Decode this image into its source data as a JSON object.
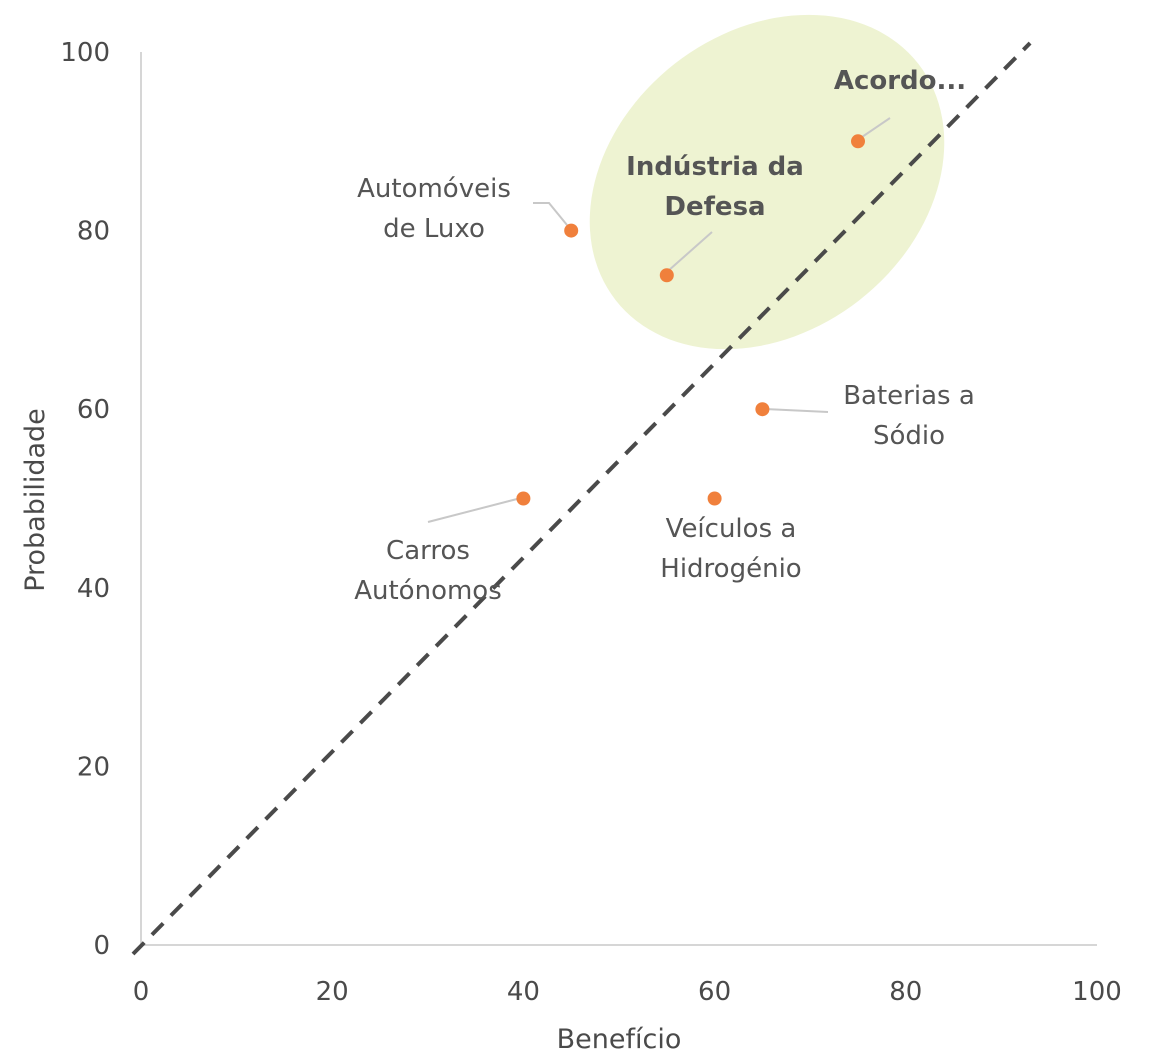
{
  "chart_data": {
    "type": "scatter",
    "title": "",
    "xlabel": "Benefício",
    "ylabel": "Probabilidade",
    "xlim": [
      0,
      100
    ],
    "ylim": [
      0,
      100
    ],
    "x_ticks": [
      "0",
      "20",
      "40",
      "60",
      "80",
      "100"
    ],
    "y_ticks": [
      "0",
      "20",
      "40",
      "60",
      "80",
      "100"
    ],
    "grid": false,
    "reference_line": {
      "style": "dashed",
      "color": "#4a4a4a",
      "from": [
        0,
        0
      ],
      "to": [
        93,
        101
      ]
    },
    "highlight_region": {
      "shape": "ellipse",
      "color": "#eef3d2"
    },
    "point_color": "#f0803c",
    "points": [
      {
        "id": "automoveis",
        "x": 45,
        "y": 80,
        "label": [
          "Automóveis",
          "de Luxo"
        ],
        "bold": false
      },
      {
        "id": "defesa",
        "x": 55,
        "y": 75,
        "label": [
          "Indústria da",
          "Defesa"
        ],
        "bold": true
      },
      {
        "id": "acordo",
        "x": 75,
        "y": 90,
        "label": [
          "Acordo..."
        ],
        "bold": true
      },
      {
        "id": "baterias",
        "x": 65,
        "y": 60,
        "label": [
          "Baterias a",
          "Sódio"
        ],
        "bold": false
      },
      {
        "id": "carros",
        "x": 40,
        "y": 50,
        "label": [
          "Carros",
          "Autónomos"
        ],
        "bold": false
      },
      {
        "id": "veiculos",
        "x": 60,
        "y": 50,
        "label": [
          "Veículos a",
          "Hidrogénio"
        ],
        "bold": false
      }
    ]
  }
}
